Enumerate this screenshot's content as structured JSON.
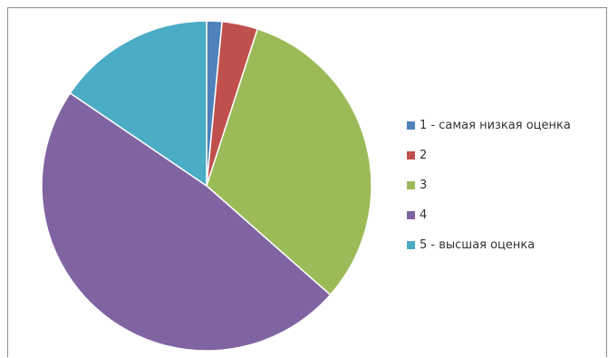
{
  "chart_data": {
    "type": "pie",
    "title": "",
    "start_angle_deg": 0,
    "direction": "clockwise",
    "slices": [
      {
        "label": "1 - самая низкая оценка",
        "value": 1.5,
        "color": "#4F81BD"
      },
      {
        "label": "2",
        "value": 3.5,
        "color": "#C0504D"
      },
      {
        "label": "3",
        "value": 31.5,
        "color": "#9BBB59"
      },
      {
        "label": "4",
        "value": 48,
        "color": "#8064A2"
      },
      {
        "label": "5 - высшая оценка",
        "value": 15.5,
        "color": "#4BACC6"
      }
    ],
    "legend_position": "right"
  }
}
